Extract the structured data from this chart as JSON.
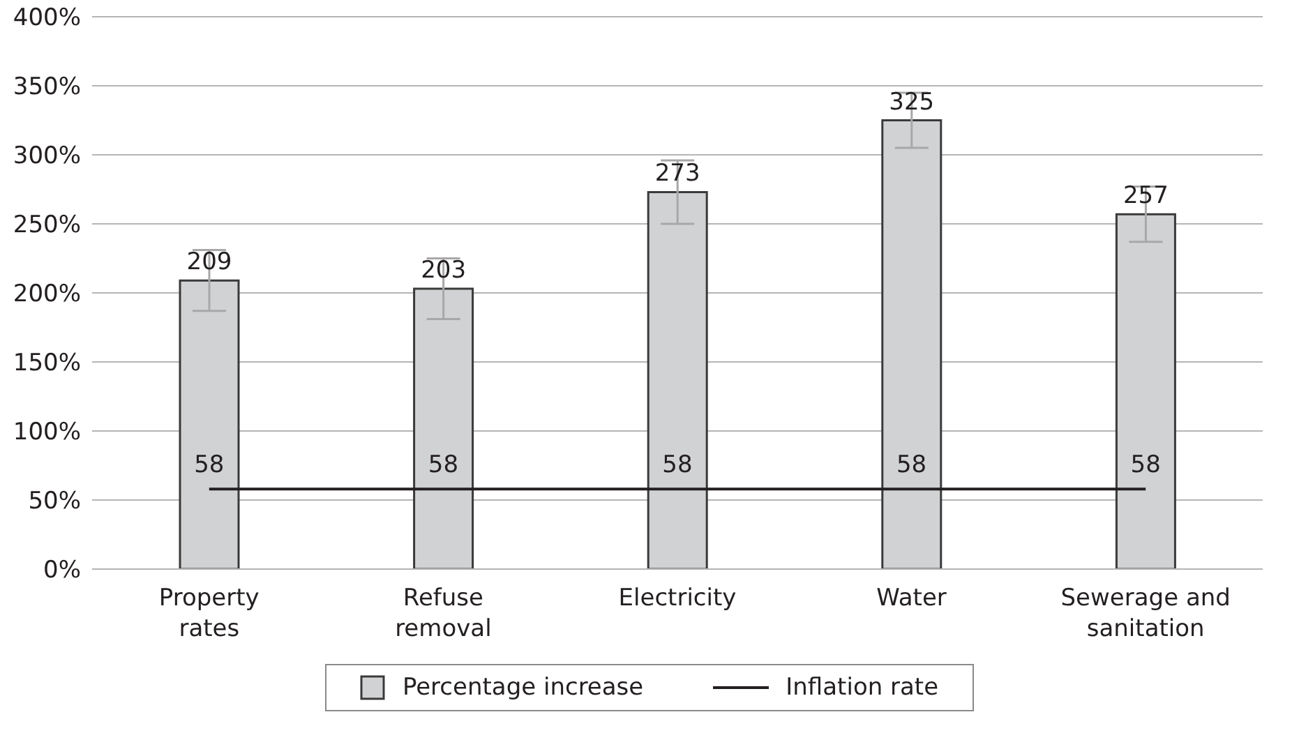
{
  "chart_data": {
    "type": "bar",
    "categories": [
      "Property rates",
      "Refuse removal",
      "Electricity",
      "Water",
      "Sewerage and sanitation"
    ],
    "series": [
      {
        "name": "Percentage increase",
        "color": "#d1d2d4",
        "values": [
          209,
          203,
          273,
          325,
          257
        ],
        "errors": [
          22,
          22,
          23,
          20,
          20
        ]
      },
      {
        "name": "Inflation rate",
        "type": "line",
        "color": "#231f20",
        "values": [
          58,
          58,
          58,
          58,
          58
        ]
      }
    ],
    "ylim": [
      0,
      400
    ],
    "yticks": [
      {
        "value": 0,
        "label": "0%"
      },
      {
        "value": 50,
        "label": "50%"
      },
      {
        "value": 100,
        "label": "100%"
      },
      {
        "value": 150,
        "label": "150%"
      },
      {
        "value": 200,
        "label": "200%"
      },
      {
        "value": 250,
        "label": "250%"
      },
      {
        "value": 300,
        "label": "300%"
      },
      {
        "value": 350,
        "label": "350%"
      },
      {
        "value": 400,
        "label": "400%"
      }
    ],
    "grid": "y",
    "legend": "bottom",
    "marker": "none",
    "data_labels": true
  }
}
